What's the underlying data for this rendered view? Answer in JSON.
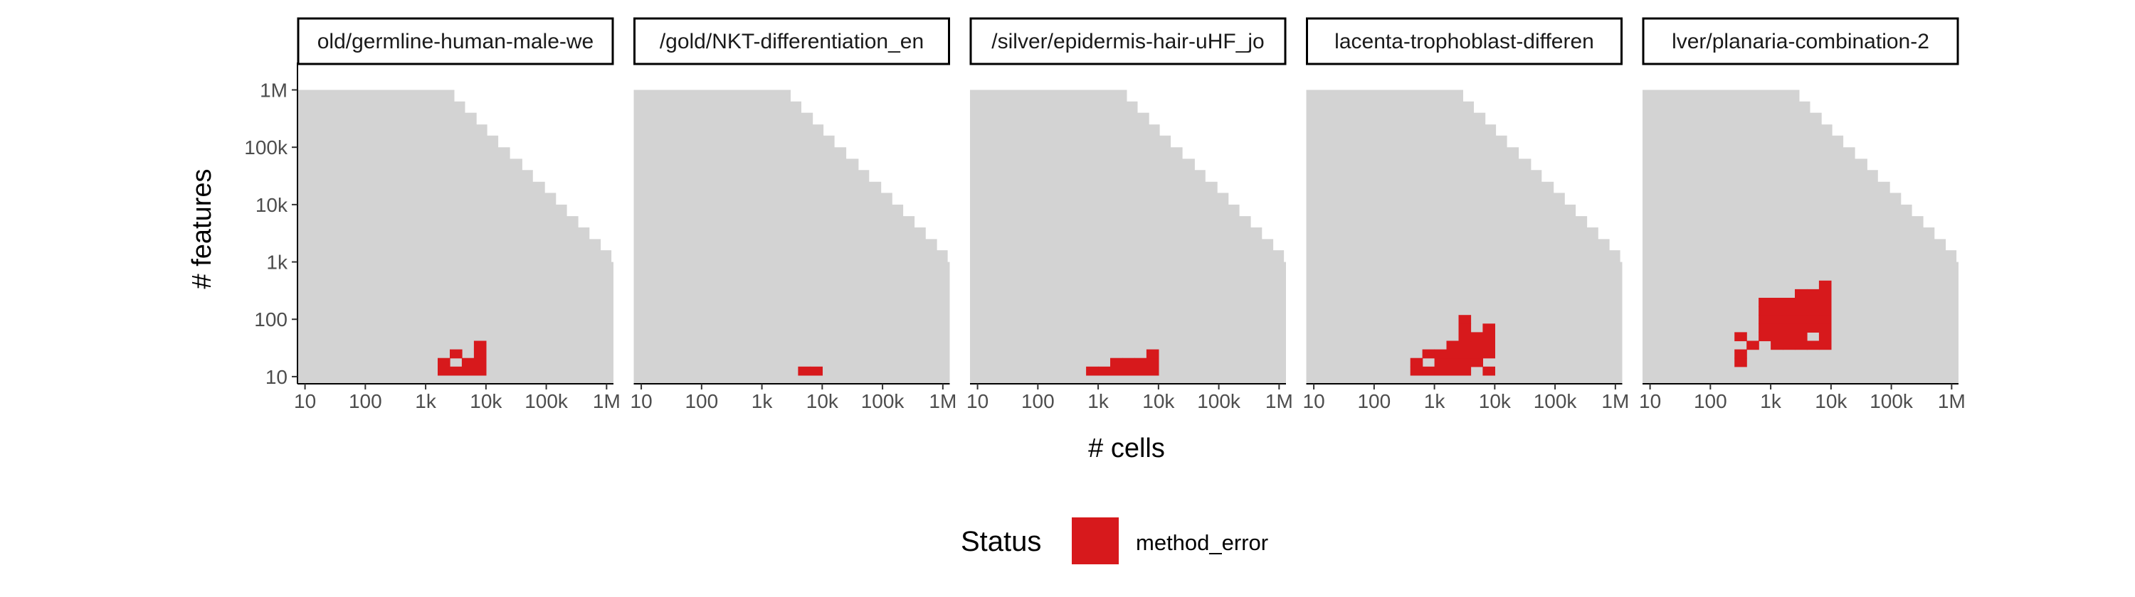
{
  "chart_data": {
    "type": "heatmap",
    "x_scale": "log10",
    "y_scale": "log10",
    "xlabel": "# cells",
    "ylabel": "# features",
    "x_ticks": [
      {
        "value": 10,
        "label": "10"
      },
      {
        "value": 100,
        "label": "100"
      },
      {
        "value": 1000,
        "label": "1k"
      },
      {
        "value": 10000,
        "label": "10k"
      },
      {
        "value": 100000,
        "label": "100k"
      },
      {
        "value": 1000000,
        "label": "1M"
      }
    ],
    "y_ticks": [
      {
        "value": 10,
        "label": "10"
      },
      {
        "value": 100,
        "label": "100"
      },
      {
        "value": 1000,
        "label": "1k"
      },
      {
        "value": 10000,
        "label": "10k"
      },
      {
        "value": 100000,
        "label": "100k"
      },
      {
        "value": 1000000,
        "label": "1M"
      }
    ],
    "xlim": [
      7.5,
      1300000
    ],
    "ylim": [
      7.5,
      3000000
    ],
    "background_region": {
      "description": "grey staircase",
      "color": "#d3d3d3",
      "staircase_steps": [
        {
          "x_max": 3000,
          "y_max": 1000000
        },
        {
          "x_max": 4500,
          "y_max": 630000
        },
        {
          "x_max": 7000,
          "y_max": 400000
        },
        {
          "x_max": 10500,
          "y_max": 250000
        },
        {
          "x_max": 16000,
          "y_max": 160000
        },
        {
          "x_max": 25000,
          "y_max": 100000
        },
        {
          "x_max": 40000,
          "y_max": 63000
        },
        {
          "x_max": 60000,
          "y_max": 40000
        },
        {
          "x_max": 95000,
          "y_max": 25000
        },
        {
          "x_max": 145000,
          "y_max": 16000
        },
        {
          "x_max": 220000,
          "y_max": 10000
        },
        {
          "x_max": 340000,
          "y_max": 6300
        },
        {
          "x_max": 520000,
          "y_max": 4000
        },
        {
          "x_max": 800000,
          "y_max": 2500
        },
        {
          "x_max": 1200000,
          "y_max": 1600
        },
        {
          "x_max": 1900000,
          "y_max": 1000
        },
        {
          "x_max": 2900000,
          "y_max": 630
        },
        {
          "x_max": 4400000,
          "y_max": 400
        },
        {
          "x_max": 6800000,
          "y_max": 250
        },
        {
          "x_max": 10500000,
          "y_max": 160
        },
        {
          "x_max": 16000000,
          "y_max": 100
        }
      ]
    },
    "panels": [
      {
        "title": "old/germline-human-male-we",
        "method_error_cells": [
          [
            3.3,
            1.1
          ],
          [
            3.5,
            1.1
          ],
          [
            3.7,
            1.1
          ],
          [
            3.9,
            1.1
          ],
          [
            3.3,
            1.25
          ],
          [
            3.7,
            1.25
          ],
          [
            3.9,
            1.25
          ],
          [
            3.5,
            1.4
          ],
          [
            3.9,
            1.4
          ],
          [
            3.9,
            1.55
          ]
        ]
      },
      {
        "title": "/gold/NKT-differentiation_en",
        "method_error_cells": [
          [
            3.7,
            1.1
          ],
          [
            3.9,
            1.1
          ]
        ]
      },
      {
        "title": "/silver/epidermis-hair-uHF_jo",
        "method_error_cells": [
          [
            2.9,
            1.1
          ],
          [
            3.1,
            1.1
          ],
          [
            3.3,
            1.1
          ],
          [
            3.5,
            1.1
          ],
          [
            3.7,
            1.1
          ],
          [
            3.9,
            1.1
          ],
          [
            3.3,
            1.25
          ],
          [
            3.5,
            1.25
          ],
          [
            3.7,
            1.25
          ],
          [
            3.9,
            1.25
          ],
          [
            3.9,
            1.4
          ]
        ]
      },
      {
        "title": "lacenta-trophoblast-differen",
        "method_error_cells": [
          [
            2.7,
            1.1
          ],
          [
            2.9,
            1.1
          ],
          [
            3.1,
            1.1
          ],
          [
            3.3,
            1.1
          ],
          [
            3.5,
            1.1
          ],
          [
            3.9,
            1.1
          ],
          [
            2.7,
            1.25
          ],
          [
            3.1,
            1.25
          ],
          [
            3.3,
            1.25
          ],
          [
            3.5,
            1.25
          ],
          [
            3.7,
            1.25
          ],
          [
            2.9,
            1.4
          ],
          [
            3.1,
            1.4
          ],
          [
            3.3,
            1.4
          ],
          [
            3.5,
            1.4
          ],
          [
            3.7,
            1.4
          ],
          [
            3.9,
            1.4
          ],
          [
            3.3,
            1.55
          ],
          [
            3.5,
            1.55
          ],
          [
            3.7,
            1.55
          ],
          [
            3.9,
            1.55
          ],
          [
            3.5,
            1.7
          ],
          [
            3.7,
            1.7
          ],
          [
            3.9,
            1.7
          ],
          [
            3.5,
            1.85
          ],
          [
            3.9,
            1.85
          ],
          [
            3.5,
            2.0
          ]
        ]
      },
      {
        "title": "lver/planaria-combination-2",
        "method_error_cells": [
          [
            2.5,
            1.25
          ],
          [
            2.5,
            1.4
          ],
          [
            2.7,
            1.55
          ],
          [
            3.1,
            1.55
          ],
          [
            3.3,
            1.55
          ],
          [
            3.5,
            1.55
          ],
          [
            3.7,
            1.55
          ],
          [
            3.9,
            1.55
          ],
          [
            2.5,
            1.7
          ],
          [
            2.9,
            1.7
          ],
          [
            3.1,
            1.7
          ],
          [
            3.3,
            1.7
          ],
          [
            3.5,
            1.7
          ],
          [
            3.9,
            1.7
          ],
          [
            2.9,
            1.85
          ],
          [
            3.1,
            1.85
          ],
          [
            3.3,
            1.85
          ],
          [
            3.5,
            1.85
          ],
          [
            3.7,
            1.85
          ],
          [
            3.9,
            1.85
          ],
          [
            2.9,
            2.0
          ],
          [
            3.1,
            2.0
          ],
          [
            3.3,
            2.0
          ],
          [
            3.5,
            2.0
          ],
          [
            3.7,
            2.0
          ],
          [
            3.9,
            2.0
          ],
          [
            2.9,
            2.15
          ],
          [
            3.1,
            2.15
          ],
          [
            3.3,
            2.15
          ],
          [
            3.5,
            2.15
          ],
          [
            3.7,
            2.15
          ],
          [
            3.9,
            2.15
          ],
          [
            2.9,
            2.3
          ],
          [
            3.1,
            2.3
          ],
          [
            3.3,
            2.3
          ],
          [
            3.5,
            2.3
          ],
          [
            3.7,
            2.3
          ],
          [
            3.9,
            2.3
          ],
          [
            3.5,
            2.45
          ],
          [
            3.7,
            2.45
          ],
          [
            3.9,
            2.45
          ],
          [
            3.9,
            2.6
          ]
        ]
      }
    ],
    "legend": {
      "title": "Status",
      "placement": "bottom",
      "entries": [
        {
          "label": "method_error",
          "color": "#d7191c"
        }
      ]
    },
    "grid": false
  }
}
